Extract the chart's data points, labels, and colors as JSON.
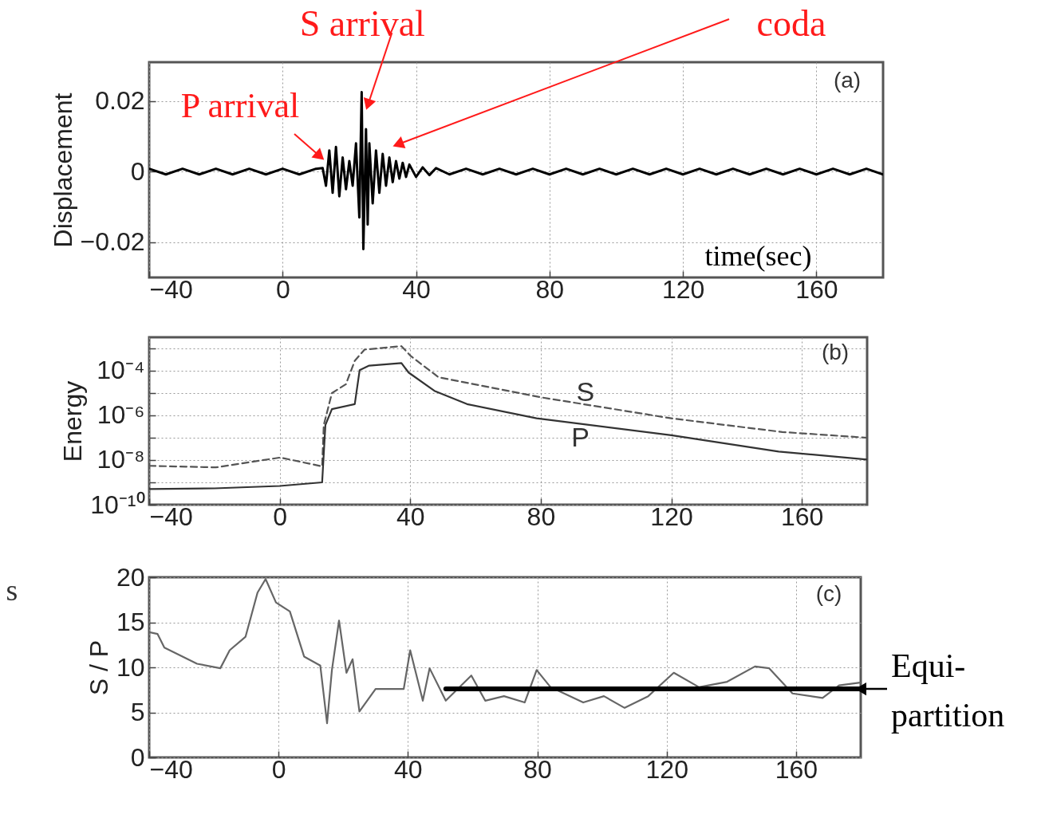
{
  "chart_data": [
    {
      "type": "line",
      "ylabel": "Displacement",
      "xlabel": "time(sec)",
      "xlim": [
        -40,
        180
      ],
      "xticks": [
        -40,
        0,
        40,
        80,
        120,
        160
      ],
      "ylim": [
        -0.03,
        0.031
      ],
      "yticks": [
        -0.02,
        {
          "value": 0,
          "label": "0"
        },
        0.02
      ],
      "grid": true,
      "series": [
        {
          "color": "#000000",
          "x": [
            -40,
            -35,
            -30,
            -25,
            -20,
            -15,
            -10,
            -5,
            0,
            5,
            10,
            12,
            13,
            14,
            15,
            16,
            17,
            18,
            19,
            20,
            21,
            22,
            23,
            23.7,
            24.2,
            25,
            25.5,
            26,
            27,
            28,
            29,
            30,
            31,
            32,
            33,
            34,
            35,
            36,
            37,
            38,
            40,
            42,
            44,
            46,
            50,
            55,
            60,
            65,
            70,
            75,
            80,
            85,
            90,
            95,
            100,
            105,
            110,
            115,
            120,
            125,
            130,
            135,
            140,
            145,
            150,
            155,
            160,
            165,
            170,
            175,
            180
          ],
          "values": [
            0.0008,
            -0.0008,
            0.0008,
            -0.0008,
            0.0008,
            -0.0008,
            0.0008,
            -0.0008,
            0.0008,
            -0.0008,
            0.0008,
            0.001,
            -0.004,
            0.006,
            -0.006,
            0.007,
            -0.007,
            0.004,
            -0.005,
            0.003,
            -0.004,
            0.008,
            -0.013,
            0.0225,
            -0.022,
            0.012,
            -0.015,
            0.008,
            -0.009,
            0.006,
            -0.006,
            0.005,
            -0.004,
            0.004,
            -0.003,
            0.003,
            -0.002,
            0.0025,
            -0.0015,
            0.002,
            -0.0015,
            0.0012,
            -0.001,
            0.001,
            -0.0008,
            0.0008,
            -0.0008,
            0.0008,
            -0.0008,
            0.0008,
            -0.0008,
            0.0008,
            -0.0008,
            0.0008,
            -0.0008,
            0.0008,
            -0.0008,
            0.0008,
            -0.0008,
            0.0008,
            -0.0008,
            0.0008,
            -0.0008,
            0.0008,
            -0.0008,
            0.0008,
            -0.0008,
            0.0008,
            -0.0008,
            0.0008,
            -0.0008
          ]
        }
      ],
      "annotations": [
        "P arrival",
        {
          "text": "S arrival",
          "x": 25.6,
          "y": 0.019
        },
        "coda",
        "(a)"
      ]
    },
    {
      "type": "line",
      "ylabel": "Energy",
      "log": true,
      "xlim": [
        -40,
        180
      ],
      "xticks": [
        -40,
        0,
        40,
        80,
        120,
        160
      ],
      "ylim": [
        1e-10,
        0.00316
      ],
      "yticks": [
        {
          "value": 1e-10,
          "label": "10⁻¹⁰"
        },
        {
          "value": 1e-09,
          "label": null
        },
        {
          "value": 1e-08,
          "label": "10⁻⁸"
        },
        {
          "value": 1e-07,
          "label": null
        },
        {
          "value": 1e-06,
          "label": "10⁻⁶"
        },
        {
          "value": 1e-05,
          "label": null
        },
        {
          "value": 0.0001,
          "label": "10⁻⁴"
        },
        {
          "value": 0.001,
          "label": null
        }
      ],
      "grid": true,
      "series": [
        {
          "name": "S",
          "color": "#555555",
          "line_style": "dashed",
          "x": [
            -40,
            -19.6,
            0.2,
            13,
            13.5,
            16,
            20.3,
            23,
            26,
            37.3,
            40.2,
            48.7,
            80.2,
            120,
            154,
            180
          ],
          "values": [
            5.5e-09,
            4.7e-09,
            1.3e-08,
            5.2e-09,
            3.7e-07,
            1e-05,
            2.5e-05,
            0.00028,
            0.00089,
            0.00126,
            0.00045,
            5.1e-05,
            6.4e-06,
            7.4e-07,
            1.8e-07,
            1e-07
          ]
        },
        {
          "name": "P",
          "color": "#333333",
          "x": [
            -40,
            -20,
            0,
            13,
            14,
            16,
            23,
            24.5,
            27.4,
            37.3,
            39.5,
            47.4,
            57.4,
            78.7,
            120,
            152.9,
            180
          ],
          "values": [
            5e-10,
            5.4e-10,
            6.9e-10,
            1e-09,
            3.7e-07,
            1.9e-06,
            3.2e-06,
            0.000107,
            0.00017,
            0.00022,
            8.3e-05,
            1.26e-05,
            3.2e-06,
            7.4e-07,
            1.3e-07,
            2.4e-08,
            1.05e-08
          ]
        }
      ],
      "annotations": [
        "(b)"
      ]
    },
    {
      "type": "line",
      "ylabel": "S / P",
      "xlim": [
        -40,
        180
      ],
      "xticks": [
        -40,
        0,
        40,
        80,
        120,
        160
      ],
      "ylim": [
        0,
        20
      ],
      "yticks": [
        0,
        5,
        10,
        15,
        20
      ],
      "grid": true,
      "series": [
        {
          "color": "#666666",
          "x": [
            -40,
            -37.4,
            -35.3,
            -25.2,
            -18,
            -15.1,
            -10.2,
            -6.5,
            -4,
            -0.8,
            3.5,
            7.9,
            12.9,
            15,
            16.5,
            18.7,
            21,
            22.9,
            25,
            30,
            38.7,
            40.7,
            44.6,
            46.7,
            51.7,
            59.6,
            63.9,
            69.7,
            76.1,
            79.8,
            84.1,
            94.2,
            100.6,
            107,
            114.3,
            122.2,
            130,
            138.7,
            147.3,
            151.7,
            158.9,
            168.2,
            173.3,
            179.8
          ],
          "values": [
            13.9,
            13.7,
            12.2,
            10.4,
            9.9,
            11.9,
            13.4,
            18.3,
            19.8,
            17.2,
            16.2,
            11.2,
            10.2,
            3.8,
            9.7,
            15.2,
            9.4,
            10.9,
            5.1,
            7.6,
            7.6,
            11.9,
            6.3,
            9.9,
            6.3,
            9.1,
            6.3,
            6.8,
            6.1,
            9.7,
            7.8,
            6.1,
            6.8,
            5.5,
            6.8,
            9.4,
            7.8,
            8.4,
            10.1,
            9.9,
            7.1,
            6.6,
            8.0,
            8.3
          ]
        },
        {
          "color": "#000000",
          "x": [
            51.7,
            180
          ],
          "values": [
            7.6,
            7.6
          ]
        }
      ],
      "annotations": [
        "(c)",
        {
          "text": "Equi-\npartition",
          "x": 180,
          "y": 7.6
        },
        "s"
      ]
    }
  ]
}
